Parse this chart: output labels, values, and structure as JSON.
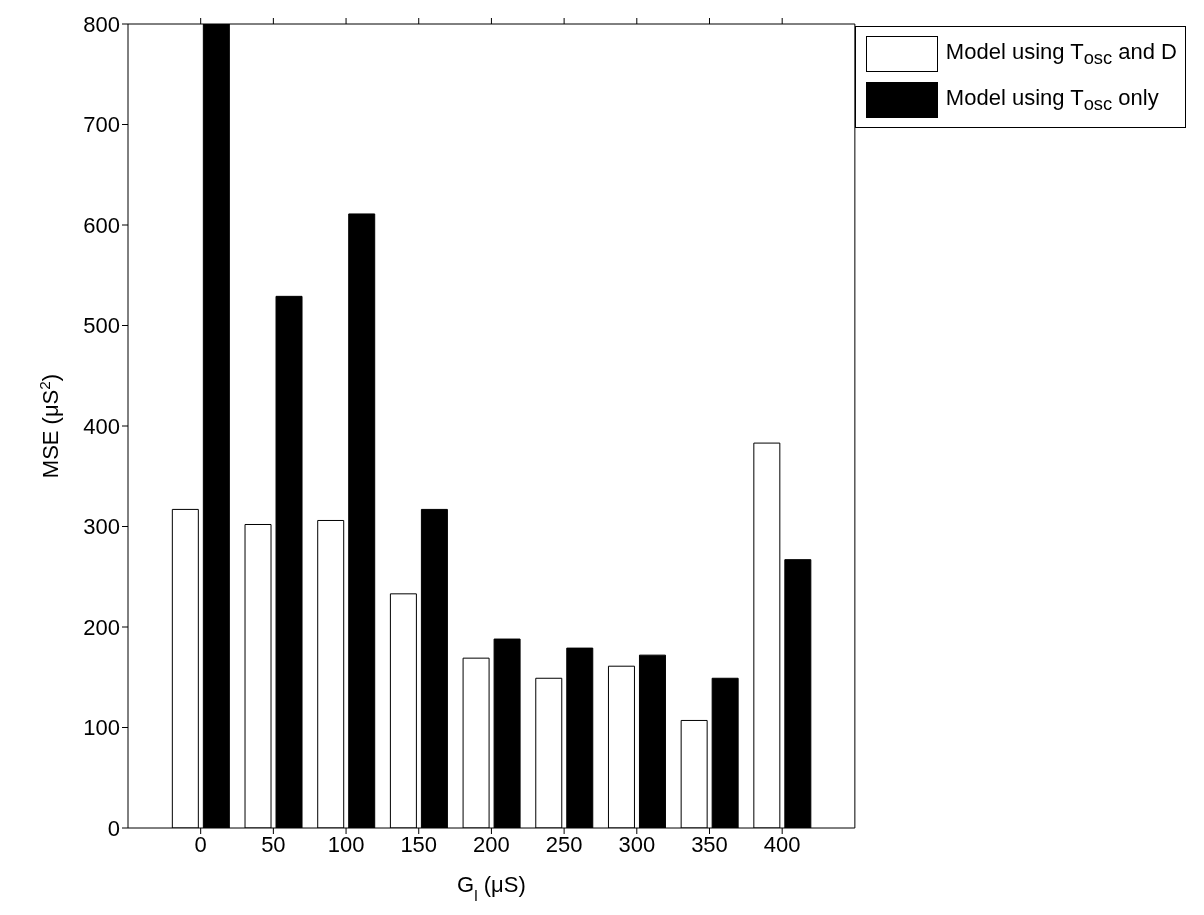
{
  "chart_data": {
    "type": "bar",
    "xlabel": "G$_{l}$ (μS)",
    "ylabel": "MSE (μS$^{2}$)",
    "x": [
      0,
      50,
      100,
      150,
      200,
      250,
      300,
      350,
      400
    ],
    "series": [
      {
        "name": "Model using T$_{osc}$ and D",
        "color": "#ffffff",
        "values": [
          317,
          302,
          306,
          233,
          169,
          149,
          161,
          107,
          383
        ]
      },
      {
        "name": "Model using T$_{osc}$ only",
        "color": "#000000",
        "values": [
          800,
          529,
          611,
          317,
          188,
          179,
          172,
          149,
          267
        ]
      }
    ],
    "xlim": [
      -50,
      450
    ],
    "xticks": [
      0,
      50,
      100,
      150,
      200,
      250,
      300,
      350,
      400
    ],
    "ylim": [
      0,
      800
    ],
    "yticks": [
      0,
      100,
      200,
      300,
      400,
      500,
      600,
      700,
      800
    ],
    "grid": false,
    "legend": "top right"
  }
}
